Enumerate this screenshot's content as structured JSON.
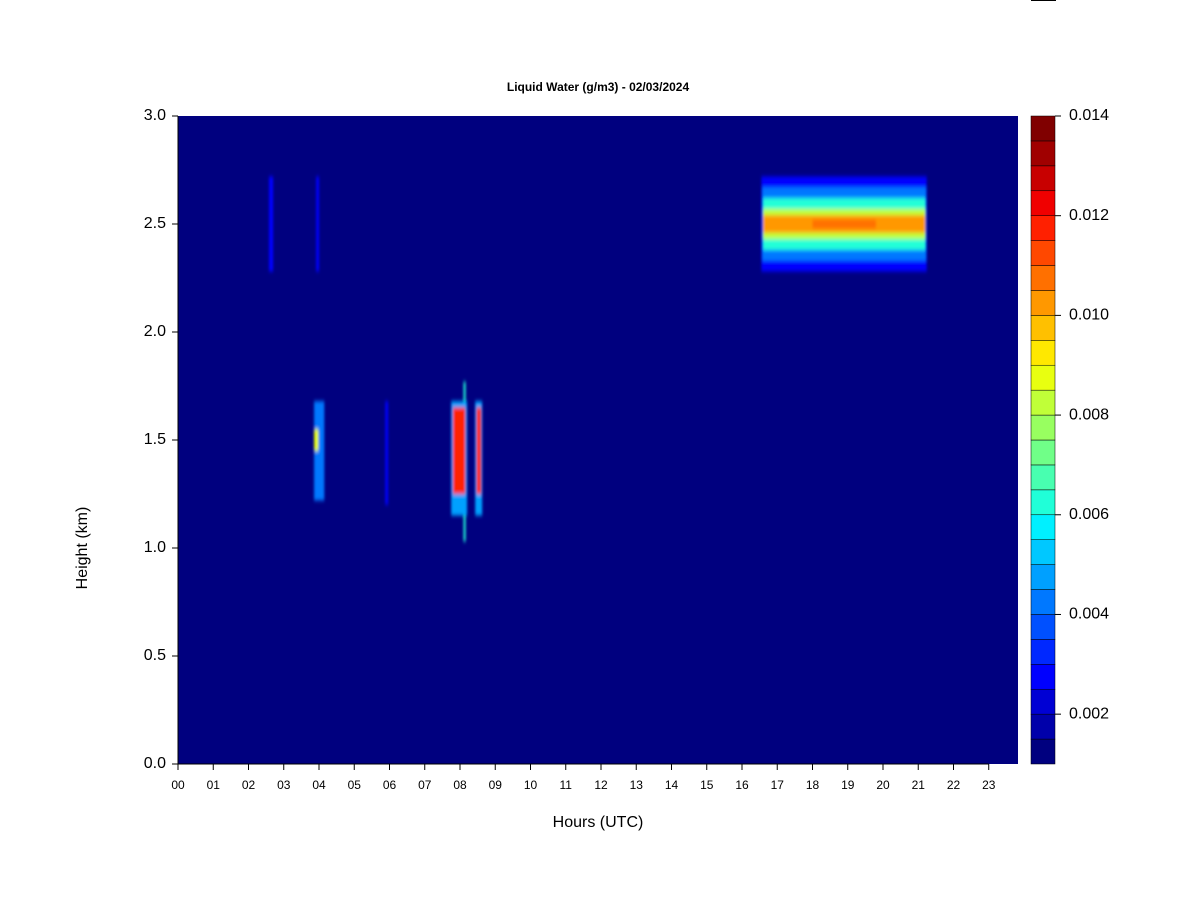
{
  "chart_data": {
    "type": "heatmap",
    "title": "Liquid Water (g/m3) - 02/03/2024",
    "xlabel": "Hours (UTC)",
    "ylabel": "Height (km)",
    "xlim": [
      0,
      23.83
    ],
    "xticks": [
      {
        "value": 0,
        "label": "00"
      },
      {
        "value": 1,
        "label": "01"
      },
      {
        "value": 2,
        "label": "02"
      },
      {
        "value": 3,
        "label": "03"
      },
      {
        "value": 4,
        "label": "04"
      },
      {
        "value": 5,
        "label": "05"
      },
      {
        "value": 6,
        "label": "06"
      },
      {
        "value": 7,
        "label": "07"
      },
      {
        "value": 8,
        "label": "08"
      },
      {
        "value": 9,
        "label": "09"
      },
      {
        "value": 10,
        "label": "10"
      },
      {
        "value": 11,
        "label": "11"
      },
      {
        "value": 12,
        "label": "12"
      },
      {
        "value": 13,
        "label": "13"
      },
      {
        "value": 14,
        "label": "14"
      },
      {
        "value": 15,
        "label": "15"
      },
      {
        "value": 16,
        "label": "16"
      },
      {
        "value": 17,
        "label": "17"
      },
      {
        "value": 18,
        "label": "18"
      },
      {
        "value": 19,
        "label": "19"
      },
      {
        "value": 20,
        "label": "20"
      },
      {
        "value": 21,
        "label": "21"
      },
      {
        "value": 22,
        "label": "22"
      },
      {
        "value": 23,
        "label": "23"
      }
    ],
    "ylim": [
      0,
      3
    ],
    "yticks": [
      {
        "value": 0,
        "label": "0.0"
      },
      {
        "value": 0.5,
        "label": "0.5"
      },
      {
        "value": 1,
        "label": "1.0"
      },
      {
        "value": 1.5,
        "label": "1.5"
      },
      {
        "value": 2,
        "label": "2.0"
      },
      {
        "value": 2.5,
        "label": "2.5"
      },
      {
        "value": 3,
        "label": "3.0"
      }
    ],
    "zlim": [
      0.001,
      0.014
    ],
    "zticks": [
      0.002,
      0.004,
      0.006,
      0.008,
      {
        "value": 0.01,
        "label": "0.010"
      },
      0.012,
      0.014
    ],
    "colors": [
      "#00007F",
      "#0000AA",
      "#0000D4",
      "#0000FF",
      "#0028FF",
      "#0050FF",
      "#0078FF",
      "#00A0FF",
      "#00C8FF",
      "#00F0FF",
      "#20FFD8",
      "#48FFB0",
      "#70FF88",
      "#98FF60",
      "#C0FF38",
      "#E8FF10",
      "#FFE800",
      "#FFC000",
      "#FF9800",
      "#FF7000",
      "#FF4800",
      "#FF2000",
      "#F00000",
      "#C80000",
      "#A00000",
      "#800000"
    ],
    "patches": [
      {
        "x": [
          2.58,
          2.7
        ],
        "y": [
          2.28,
          2.72
        ],
        "value": 0.003
      },
      {
        "x": [
          3.92,
          4.0
        ],
        "y": [
          2.28,
          2.72
        ],
        "value": 0.003
      },
      {
        "x": [
          3.86,
          4.15
        ],
        "y": [
          1.22,
          1.68
        ],
        "value": 0.004
      },
      {
        "x": [
          3.86,
          3.98
        ],
        "y": [
          1.45,
          1.55
        ],
        "value": 0.009
      },
      {
        "x": [
          5.88,
          5.96
        ],
        "y": [
          1.2,
          1.68
        ],
        "value": 0.003
      },
      {
        "x": [
          8.1,
          8.16
        ],
        "y": [
          1.03,
          1.77
        ],
        "value": 0.006
      },
      {
        "x": [
          7.75,
          8.2
        ],
        "y": [
          1.15,
          1.68
        ],
        "value": 0.005
      },
      {
        "x": [
          7.8,
          8.15
        ],
        "y": [
          1.25,
          1.65
        ],
        "value": 0.012
      },
      {
        "x": [
          8.43,
          8.63
        ],
        "y": [
          1.15,
          1.68
        ],
        "value": 0.005
      },
      {
        "x": [
          8.47,
          8.6
        ],
        "y": [
          1.25,
          1.65
        ],
        "value": 0.012
      },
      {
        "x": [
          16.55,
          21.24
        ],
        "y": [
          2.28,
          2.72
        ],
        "value": 0.003
      },
      {
        "x": [
          16.58,
          21.22
        ],
        "y": [
          2.33,
          2.67
        ],
        "value": 0.004
      },
      {
        "x": [
          16.6,
          21.2
        ],
        "y": [
          2.38,
          2.62
        ],
        "value": 0.006
      },
      {
        "x": [
          16.6,
          21.2
        ],
        "y": [
          2.43,
          2.57
        ],
        "value": 0.008
      },
      {
        "x": [
          16.6,
          21.2
        ],
        "y": [
          2.46,
          2.54
        ],
        "value": 0.01
      },
      {
        "x": [
          18.0,
          19.8
        ],
        "y": [
          2.48,
          2.52
        ],
        "value": 0.011
      }
    ]
  }
}
